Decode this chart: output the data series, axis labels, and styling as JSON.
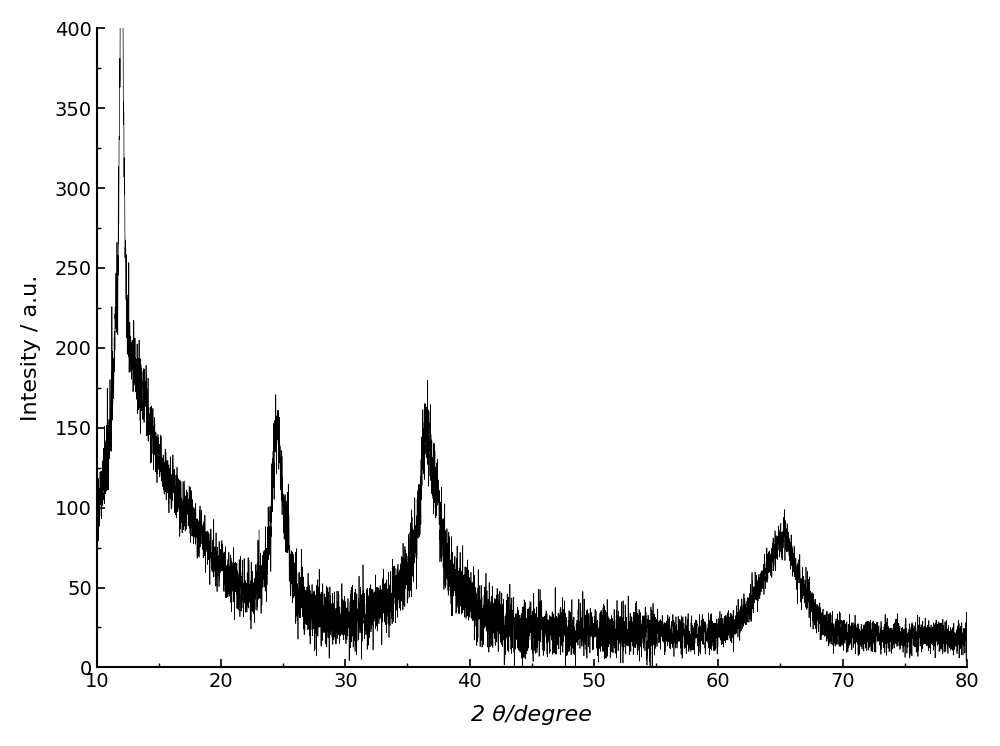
{
  "title": "",
  "xlabel": "2 θ/degree",
  "ylabel": "Intesity / a.u.",
  "xlim": [
    10,
    80
  ],
  "ylim": [
    0,
    400
  ],
  "xticks": [
    10,
    20,
    30,
    40,
    50,
    60,
    70,
    80
  ],
  "yticks": [
    0,
    50,
    100,
    150,
    200,
    250,
    300,
    350,
    400
  ],
  "line_color": "#000000",
  "background_color": "#ffffff",
  "figsize": [
    10.0,
    7.46
  ],
  "dpi": 100,
  "xlabel_fontsize": 16,
  "ylabel_fontsize": 16,
  "tick_fontsize": 14
}
